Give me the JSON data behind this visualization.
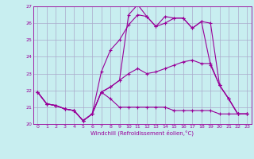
{
  "title": "",
  "xlabel": "Windchill (Refroidissement éolien,°C)",
  "background_color": "#c8eef0",
  "grid_color": "#aaaacc",
  "line_color": "#990099",
  "xlim": [
    -0.5,
    23.5
  ],
  "ylim": [
    20,
    27
  ],
  "xticks": [
    0,
    1,
    2,
    3,
    4,
    5,
    6,
    7,
    8,
    9,
    10,
    11,
    12,
    13,
    14,
    15,
    16,
    17,
    18,
    19,
    20,
    21,
    22,
    23
  ],
  "yticks": [
    20,
    21,
    22,
    23,
    24,
    25,
    26,
    27
  ],
  "series": [
    [
      21.9,
      21.2,
      21.1,
      20.9,
      20.8,
      20.2,
      20.6,
      21.9,
      21.5,
      21.0,
      21.0,
      21.0,
      21.0,
      21.0,
      21.0,
      20.8,
      20.8,
      20.8,
      20.8,
      20.8,
      20.6,
      20.6,
      20.6,
      20.6
    ],
    [
      21.9,
      21.2,
      21.1,
      20.9,
      20.8,
      20.2,
      20.6,
      21.9,
      22.2,
      22.6,
      23.0,
      23.3,
      23.0,
      23.1,
      23.3,
      23.5,
      23.7,
      23.8,
      23.6,
      23.6,
      22.3,
      21.5,
      20.6,
      20.6
    ],
    [
      21.9,
      21.2,
      21.1,
      20.9,
      20.8,
      20.2,
      20.6,
      21.9,
      22.2,
      22.6,
      26.5,
      27.1,
      26.4,
      25.8,
      26.4,
      26.3,
      26.3,
      25.7,
      26.1,
      26.0,
      22.3,
      21.5,
      20.6,
      20.6
    ],
    [
      21.9,
      21.2,
      21.1,
      20.9,
      20.8,
      20.2,
      20.6,
      23.1,
      24.4,
      25.0,
      25.9,
      26.5,
      26.4,
      25.8,
      26.0,
      26.3,
      26.3,
      25.7,
      26.1,
      23.5,
      22.3,
      21.5,
      20.6,
      20.6
    ]
  ]
}
